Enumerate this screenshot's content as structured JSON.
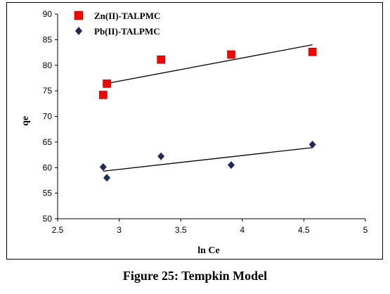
{
  "figure": {
    "caption": "Figure 25: Tempkin Model"
  },
  "chart_data": {
    "type": "scatter",
    "xlabel": "ln Ce",
    "ylabel": "qe",
    "xlim": [
      2.5,
      5
    ],
    "ylim": [
      50,
      90
    ],
    "x_ticks": [
      "2.5",
      "3",
      "3.5",
      "4",
      "4.5",
      "5"
    ],
    "y_ticks": [
      "50",
      "55",
      "60",
      "65",
      "70",
      "75",
      "80",
      "85",
      "90"
    ],
    "grid": false,
    "legend": "top-left",
    "series": [
      {
        "name": "Zn(II)-TALPMC",
        "marker": "square",
        "color": "#ff0000",
        "x": [
          2.87,
          2.9,
          3.34,
          3.91,
          4.57
        ],
        "y": [
          74.2,
          76.4,
          81.1,
          82.1,
          82.6
        ],
        "trendline": {
          "x": [
            2.87,
            4.57
          ],
          "y": [
            76.3,
            84.0
          ]
        }
      },
      {
        "name": "Pb(II)-TALPMC",
        "marker": "diamond",
        "color": "#1f2a5a",
        "x": [
          2.87,
          2.9,
          3.34,
          3.91,
          4.57
        ],
        "y": [
          60.1,
          58.0,
          62.2,
          60.5,
          64.5
        ],
        "trendline": {
          "x": [
            2.87,
            4.57
          ],
          "y": [
            59.3,
            63.9
          ]
        }
      }
    ]
  }
}
